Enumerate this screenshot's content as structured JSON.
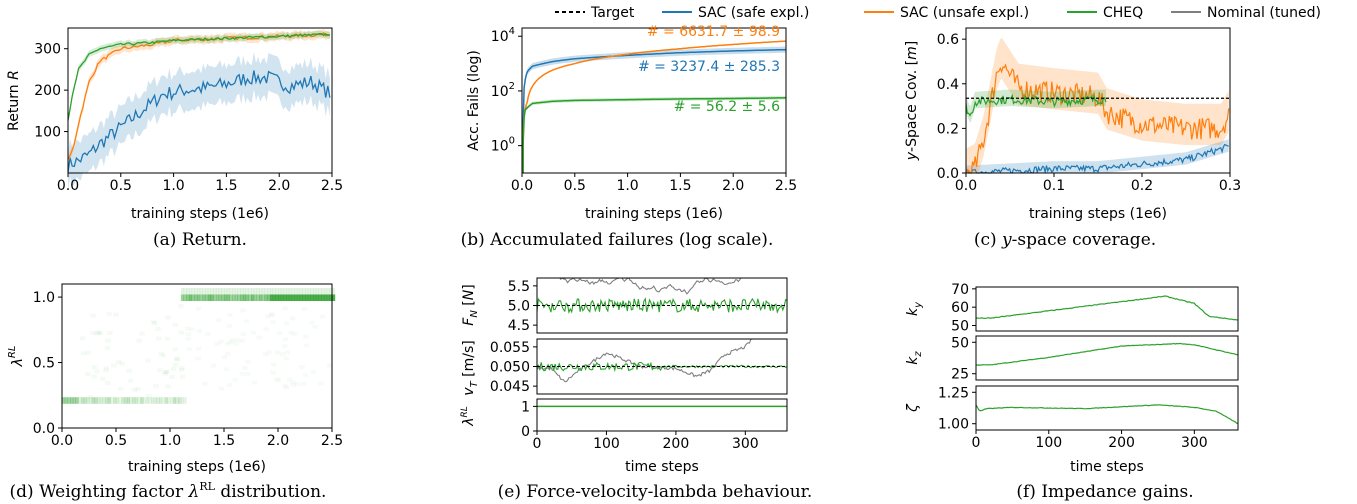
{
  "legend": [
    {
      "label": "Target",
      "color": "#000000",
      "style": "dashed"
    },
    {
      "label": "SAC (safe expl.)",
      "color": "#1f77b4",
      "style": "solid"
    },
    {
      "label": "SAC (unsafe expl.)",
      "color": "#ff7f0e",
      "style": "solid"
    },
    {
      "label": "CHEQ",
      "color": "#2ca02c",
      "style": "solid"
    },
    {
      "label": "Nominal (tuned)",
      "color": "#7f7f7f",
      "style": "solid"
    }
  ],
  "captions": {
    "a": "(a) Return.",
    "b": "(b) Accumulated failures (log scale).",
    "c": "-space coverage.",
    "c_prefix": "(c) ",
    "c_var": "y",
    "d": "(d) Weighting factor ",
    "d_sym": "λ",
    "d_sup": "RL",
    "d_suffix": " distribution.",
    "e": "(e) Force-velocity-lambda behaviour.",
    "f": "(f) Impedance gains."
  },
  "chart_data": [
    {
      "id": "a",
      "type": "line",
      "xlabel": "training steps (1e6)",
      "ylabel": "Return R",
      "xlim": [
        0,
        2.5
      ],
      "ylim": [
        0,
        350
      ],
      "xticks": [
        "0.0",
        "0.5",
        "1.0",
        "1.5",
        "2.0",
        "2.5"
      ],
      "yticks": [
        "100",
        "200",
        "300"
      ],
      "series": [
        {
          "name": "SAC (safe expl.)",
          "x": [
            0,
            0.1,
            0.2,
            0.3,
            0.5,
            0.7,
            0.9,
            1.1,
            1.3,
            1.5,
            1.7,
            1.9,
            2.1,
            2.3,
            2.5
          ],
          "y": [
            20,
            30,
            45,
            70,
            110,
            150,
            190,
            200,
            205,
            215,
            230,
            230,
            210,
            220,
            190
          ]
        },
        {
          "name": "SAC (unsafe expl.)",
          "x": [
            0,
            0.05,
            0.1,
            0.2,
            0.3,
            0.5,
            0.8,
            1.0,
            1.5,
            2.0,
            2.5
          ],
          "y": [
            30,
            60,
            120,
            220,
            270,
            300,
            310,
            320,
            325,
            330,
            335
          ]
        },
        {
          "name": "CHEQ",
          "x": [
            0,
            0.05,
            0.1,
            0.2,
            0.3,
            0.5,
            0.8,
            1.0,
            1.5,
            2.0,
            2.5
          ],
          "y": [
            130,
            200,
            250,
            285,
            300,
            310,
            315,
            320,
            325,
            330,
            335
          ]
        }
      ]
    },
    {
      "id": "b",
      "type": "line",
      "yscale": "log",
      "xlabel": "training steps (1e6)",
      "ylabel": "Acc. Fails (log)",
      "xlim": [
        0,
        2.5
      ],
      "ylim": [
        0.1,
        20000
      ],
      "xticks": [
        "0.0",
        "0.5",
        "1.0",
        "1.5",
        "2.0",
        "2.5"
      ],
      "yticks": [
        "10^0",
        "10^2",
        "10^4"
      ],
      "annotations": [
        "# = 6631.7 ± 98.9",
        "# = 3237.4 ± 285.3",
        "# = 56.2 ± 5.6"
      ],
      "series": [
        {
          "name": "SAC (safe expl.)",
          "x": [
            0.01,
            0.05,
            0.1,
            0.3,
            0.5,
            1.0,
            1.5,
            2.0,
            2.5
          ],
          "y": [
            5,
            500,
            800,
            1200,
            1500,
            2000,
            2500,
            2900,
            3237
          ]
        },
        {
          "name": "SAC (unsafe expl.)",
          "x": [
            0.01,
            0.05,
            0.1,
            0.3,
            0.5,
            1.0,
            1.5,
            2.0,
            2.5
          ],
          "y": [
            2,
            40,
            150,
            600,
            1000,
            2200,
            3500,
            5000,
            6631
          ]
        },
        {
          "name": "CHEQ",
          "x": [
            0.01,
            0.03,
            0.1,
            0.3,
            0.5,
            1.0,
            1.5,
            2.0,
            2.5
          ],
          "y": [
            1,
            20,
            35,
            42,
            45,
            48,
            51,
            53,
            56
          ]
        }
      ]
    },
    {
      "id": "c",
      "type": "line",
      "xlabel": "training steps (1e6)",
      "ylabel": "y-Space Cov. [m]",
      "xlim": [
        0,
        0.3
      ],
      "ylim": [
        0,
        0.65
      ],
      "xticks": [
        "0.0",
        "0.1",
        "0.2",
        "0.3"
      ],
      "yticks": [
        "0.0",
        "0.2",
        "0.4",
        "0.6"
      ],
      "target": 0.335,
      "series": [
        {
          "name": "SAC (safe expl.)",
          "x": [
            0,
            0.05,
            0.1,
            0.15,
            0.2,
            0.25,
            0.3
          ],
          "y": [
            0.0,
            0.01,
            0.02,
            0.02,
            0.04,
            0.06,
            0.12
          ]
        },
        {
          "name": "SAC (unsafe expl.)",
          "x": [
            0,
            0.01,
            0.02,
            0.03,
            0.035,
            0.04,
            0.06,
            0.1,
            0.15,
            0.16,
            0.2,
            0.25,
            0.29,
            0.3
          ],
          "y": [
            0.0,
            0.02,
            0.15,
            0.35,
            0.45,
            0.5,
            0.38,
            0.36,
            0.34,
            0.27,
            0.22,
            0.2,
            0.2,
            0.27
          ]
        },
        {
          "name": "CHEQ",
          "x": [
            0,
            0.005,
            0.01,
            0.05,
            0.1,
            0.15,
            0.16
          ],
          "y": [
            0.3,
            0.25,
            0.32,
            0.33,
            0.32,
            0.33,
            0.33
          ]
        }
      ]
    },
    {
      "id": "d",
      "type": "heatmap",
      "xlabel": "training steps (1e6)",
      "ylabel": "λ^RL",
      "xlim": [
        0,
        2.5
      ],
      "ylim": [
        0,
        1.1
      ],
      "xticks": [
        "0.0",
        "0.5",
        "1.0",
        "1.5",
        "2.0",
        "2.5"
      ],
      "yticks": [
        "0.0",
        "0.5",
        "1.0"
      ]
    },
    {
      "id": "e",
      "type": "line",
      "xlabel": "time steps",
      "xlim": [
        0,
        360
      ],
      "xticks": [
        "0",
        "100",
        "200",
        "300"
      ],
      "panels": [
        {
          "ylabel": "F_N [N]",
          "ylim": [
            4.3,
            5.7
          ],
          "yticks": [
            "4.5",
            "5.0",
            "5.5"
          ],
          "target": 5.0
        },
        {
          "ylabel": "v_T [m/s]",
          "ylim": [
            0.043,
            0.057
          ],
          "yticks": [
            "0.045",
            "0.050",
            "0.055"
          ],
          "target": 0.05
        },
        {
          "ylabel": "λ^RL",
          "ylim": [
            0,
            1.3
          ],
          "yticks": [
            "0",
            "1"
          ],
          "value": 1.0
        }
      ]
    },
    {
      "id": "f",
      "type": "line",
      "xlabel": "time steps",
      "xlim": [
        0,
        360
      ],
      "xticks": [
        "0",
        "100",
        "200",
        "300"
      ],
      "panels": [
        {
          "ylabel": "k_y",
          "ylim": [
            47,
            71
          ],
          "yticks": [
            "50",
            "60",
            "70"
          ],
          "x": [
            0,
            20,
            100,
            200,
            260,
            300,
            320,
            360
          ],
          "y": [
            54,
            54,
            58,
            63,
            66,
            62,
            55,
            53
          ]
        },
        {
          "ylabel": "k_z",
          "ylim": [
            20,
            55
          ],
          "yticks": [
            "25",
            "50"
          ],
          "x": [
            0,
            20,
            100,
            200,
            280,
            300,
            360
          ],
          "y": [
            32,
            32,
            38,
            47,
            49,
            48,
            40
          ]
        },
        {
          "ylabel": "ζ",
          "ylim": [
            0.95,
            1.3
          ],
          "yticks": [
            "1.00",
            "1.25"
          ],
          "x": [
            0,
            5,
            15,
            50,
            150,
            250,
            300,
            330,
            360
          ],
          "y": [
            1.15,
            1.1,
            1.12,
            1.13,
            1.12,
            1.15,
            1.13,
            1.1,
            1.0
          ]
        }
      ]
    }
  ]
}
